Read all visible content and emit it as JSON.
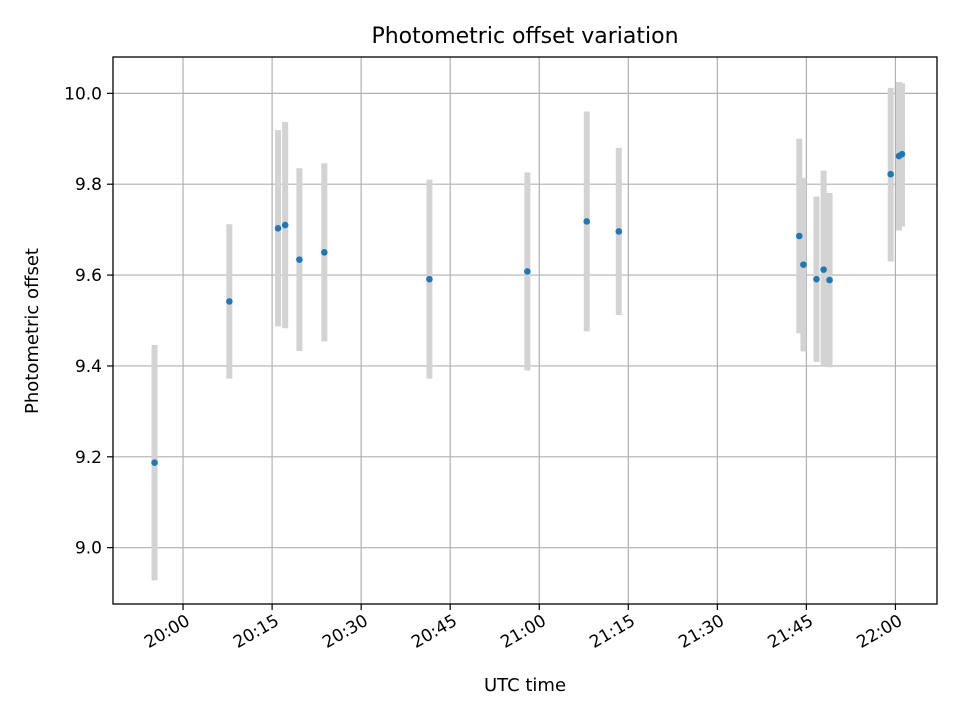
{
  "chart_data": {
    "type": "scatter",
    "title": "Photometric offset variation",
    "xlabel": "UTC time",
    "ylabel": "Photometric offset",
    "x_ticks": [
      "20:00",
      "20:15",
      "20:30",
      "20:45",
      "21:00",
      "21:15",
      "21:30",
      "21:45",
      "22:00"
    ],
    "y_ticks": [
      "9.0",
      "9.2",
      "9.4",
      "9.6",
      "9.8",
      "10.0"
    ],
    "xlim": [
      "19:48.2",
      "22:07.0"
    ],
    "ylim": [
      8.876,
      10.08
    ],
    "grid": true,
    "colors": {
      "point": "#1f77b4",
      "errorbar": "#d3d3d3",
      "grid": "#b0b0b0"
    },
    "points": [
      {
        "time": "19:55.2",
        "offset": 9.187,
        "low": 8.928,
        "high": 9.446
      },
      {
        "time": "20:07.8",
        "offset": 9.542,
        "low": 9.372,
        "high": 9.712
      },
      {
        "time": "20:16.0",
        "offset": 9.703,
        "low": 9.487,
        "high": 9.919
      },
      {
        "time": "20:17.2",
        "offset": 9.71,
        "low": 9.483,
        "high": 9.937
      },
      {
        "time": "20:19.6",
        "offset": 9.634,
        "low": 9.433,
        "high": 9.835
      },
      {
        "time": "20:23.8",
        "offset": 9.65,
        "low": 9.454,
        "high": 9.846
      },
      {
        "time": "20:41.5",
        "offset": 9.591,
        "low": 9.372,
        "high": 9.81
      },
      {
        "time": "20:58.0",
        "offset": 9.608,
        "low": 9.39,
        "high": 9.826
      },
      {
        "time": "21:08.0",
        "offset": 9.718,
        "low": 9.476,
        "high": 9.96
      },
      {
        "time": "21:13.4",
        "offset": 9.696,
        "low": 9.512,
        "high": 9.88
      },
      {
        "time": "21:43.8",
        "offset": 9.686,
        "low": 9.472,
        "high": 9.9
      },
      {
        "time": "21:44.5",
        "offset": 9.623,
        "low": 9.432,
        "high": 9.814
      },
      {
        "time": "21:46.7",
        "offset": 9.591,
        "low": 9.409,
        "high": 9.773
      },
      {
        "time": "21:47.9",
        "offset": 9.612,
        "low": 9.4,
        "high": 9.83
      },
      {
        "time": "21:48.9",
        "offset": 9.589,
        "low": 9.397,
        "high": 9.781
      },
      {
        "time": "21:59.2",
        "offset": 9.822,
        "low": 9.63,
        "high": 10.012
      },
      {
        "time": "22:00.6",
        "offset": 9.862,
        "low": 9.698,
        "high": 10.025
      },
      {
        "time": "22:01.1",
        "offset": 9.866,
        "low": 9.707,
        "high": 10.022
      }
    ]
  }
}
